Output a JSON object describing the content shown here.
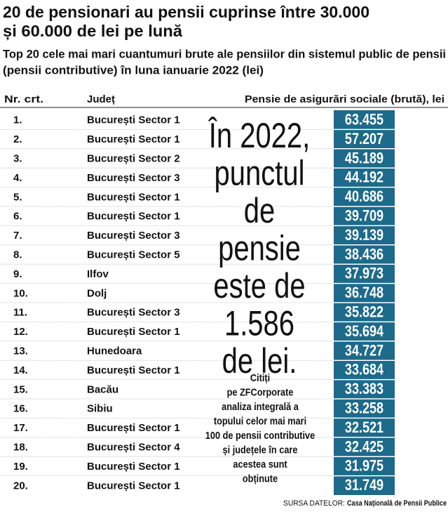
{
  "header": {
    "title_lines": [
      "20 de pensionari au pensii cuprinse între 30.000",
      "și 60.000 de lei pe lună"
    ],
    "subtitle_lines": [
      "Top 20 cele mai mari cuantumuri brute ale pensiilor din sistemul public de pensii",
      "(pensii contributive) în luna ianuarie 2022 (lei)"
    ]
  },
  "table": {
    "columns": [
      "Nr. crt.",
      "Județ",
      "Pensie de asigurări sociale (brută), lei"
    ],
    "rows": [
      [
        "1.",
        "București Sector 1",
        "63.455"
      ],
      [
        "2.",
        "București Sector 1",
        "57.207"
      ],
      [
        "3.",
        "București Sector 2",
        "45.189"
      ],
      [
        "4.",
        "București Sector 3",
        "44.192"
      ],
      [
        "5.",
        "București Sector 1",
        "40.686"
      ],
      [
        "6.",
        "București Sector 1",
        "39.709"
      ],
      [
        "7.",
        "București Sector 3",
        "39.139"
      ],
      [
        "8.",
        "București Sector 5",
        "38.436"
      ],
      [
        "9.",
        "Ilfov",
        "37.973"
      ],
      [
        "10.",
        "Dolj",
        "36.748"
      ],
      [
        "11.",
        "București Sector 3",
        "35.822"
      ],
      [
        "12.",
        "București Sector 1",
        "35.694"
      ],
      [
        "13.",
        "Hunedoara",
        "34.727"
      ],
      [
        "14.",
        "București Sector 1",
        "33.684"
      ],
      [
        "15.",
        "Bacău",
        "33.383"
      ],
      [
        "16.",
        "Sibiu",
        "33.258"
      ],
      [
        "17.",
        "București Sector 1",
        "32.521"
      ],
      [
        "18.",
        "București Sector 4",
        "32.425"
      ],
      [
        "19.",
        "București Sector 1",
        "31.975"
      ],
      [
        "20.",
        "București Sector 1",
        "31.749"
      ]
    ]
  },
  "callout": {
    "lines": [
      "În 2022,",
      "punctul",
      "de",
      "pensie",
      "este de",
      "1.586",
      "de lei."
    ]
  },
  "note": {
    "lines": [
      "Citiți",
      "pe ZFCorporate",
      "analiza integrală a",
      "topului celor mai mari",
      "100 de pensii contributive",
      "și județele în care",
      "acestea sunt",
      "obținute"
    ]
  },
  "source": {
    "label": "SURSA DATELOR:",
    "name": "Casa Națională de Pensii Publice"
  }
}
